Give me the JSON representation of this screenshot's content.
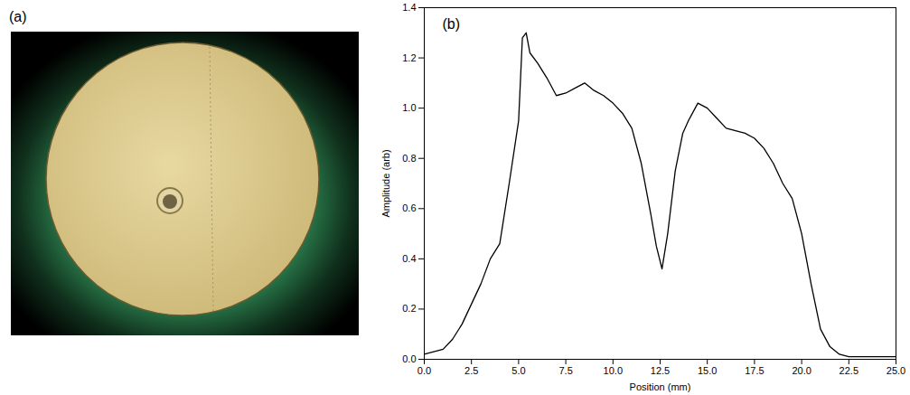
{
  "chart_data": [
    {
      "type": "image",
      "label": "(a)"
    },
    {
      "type": "line",
      "label": "(b)",
      "x_label": "Position (mm)",
      "y_label": "Amplitude (arb)",
      "color": "#000000",
      "x": [
        0.0,
        0.5,
        1.0,
        1.5,
        2.0,
        2.5,
        3.0,
        3.5,
        4.0,
        4.5,
        5.0,
        5.2,
        5.4,
        5.6,
        6.0,
        6.5,
        7.0,
        7.5,
        8.0,
        8.5,
        9.0,
        9.5,
        10.0,
        10.5,
        11.0,
        11.5,
        12.0,
        12.3,
        12.6,
        12.9,
        13.3,
        13.7,
        14.0,
        14.5,
        15.0,
        15.5,
        16.0,
        16.5,
        17.0,
        17.5,
        18.0,
        18.5,
        19.0,
        19.5,
        20.0,
        20.5,
        21.0,
        21.5,
        22.0,
        22.5,
        23.0,
        24.0,
        25.0
      ],
      "values": [
        0.02,
        0.03,
        0.04,
        0.08,
        0.14,
        0.22,
        0.3,
        0.4,
        0.46,
        0.7,
        0.95,
        1.28,
        1.3,
        1.22,
        1.18,
        1.12,
        1.05,
        1.06,
        1.08,
        1.1,
        1.07,
        1.05,
        1.02,
        0.98,
        0.92,
        0.78,
        0.58,
        0.45,
        0.36,
        0.5,
        0.75,
        0.9,
        0.95,
        1.02,
        1.0,
        0.96,
        0.92,
        0.91,
        0.9,
        0.88,
        0.84,
        0.78,
        0.7,
        0.64,
        0.5,
        0.3,
        0.12,
        0.05,
        0.02,
        0.01,
        0.01,
        0.01,
        0.01
      ],
      "xlim": [
        0,
        25
      ],
      "xticks": [
        {
          "value": 0,
          "label": "0.0"
        },
        {
          "value": 2.5,
          "label": "2.5"
        },
        {
          "value": 5,
          "label": "5.0"
        },
        {
          "value": 7.5,
          "label": "7.5"
        },
        {
          "value": 10,
          "label": "10.0"
        },
        {
          "value": 12.5,
          "label": "12.5"
        },
        {
          "value": 15,
          "label": "15.0"
        },
        {
          "value": 17.5,
          "label": "17.5"
        },
        {
          "value": 20,
          "label": "20.0"
        },
        {
          "value": 22.5,
          "label": "22.5"
        },
        {
          "value": 25,
          "label": "25.0"
        }
      ],
      "ylim": [
        0,
        1.4
      ],
      "yticks": [
        {
          "value": 0,
          "label": "0.0"
        },
        {
          "value": 0.2,
          "label": "0.2"
        },
        {
          "value": 0.4,
          "label": "0.4"
        },
        {
          "value": 0.6,
          "label": "0.6"
        },
        {
          "value": 0.8,
          "label": "0.8"
        },
        {
          "value": 1,
          "label": "1.0"
        },
        {
          "value": 1.2,
          "label": "1.2"
        },
        {
          "value": 1.4,
          "label": "1.4"
        }
      ],
      "grid": false
    }
  ]
}
